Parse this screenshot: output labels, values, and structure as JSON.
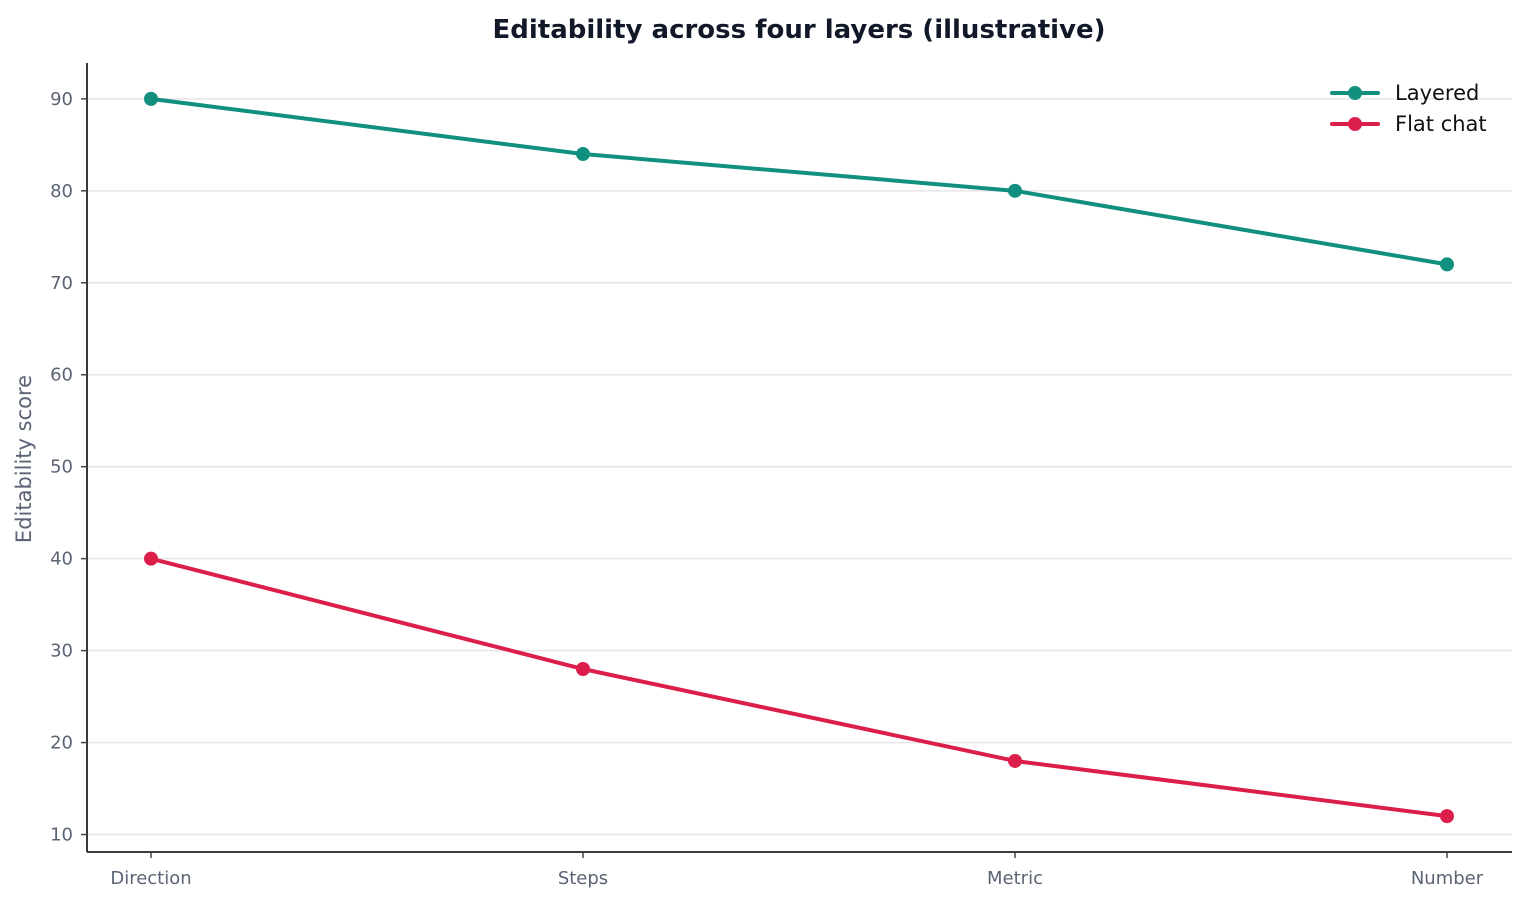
{
  "chart_data": {
    "type": "line",
    "title": "Editability across four layers (illustrative)",
    "xlabel": "",
    "ylabel": "Editability score",
    "categories": [
      "Direction",
      "Steps",
      "Metric",
      "Number"
    ],
    "series": [
      {
        "name": "Layered",
        "color": "#12907f",
        "values": [
          90,
          84,
          80,
          72
        ]
      },
      {
        "name": "Flat chat",
        "color": "#dc1f4a",
        "values": [
          40,
          28,
          18,
          12
        ]
      }
    ],
    "ylim": [
      8.1,
      93.9
    ],
    "yticks": [
      10,
      20,
      30,
      40,
      50,
      60,
      70,
      80,
      90
    ],
    "grid": true,
    "legend": "top-right"
  }
}
